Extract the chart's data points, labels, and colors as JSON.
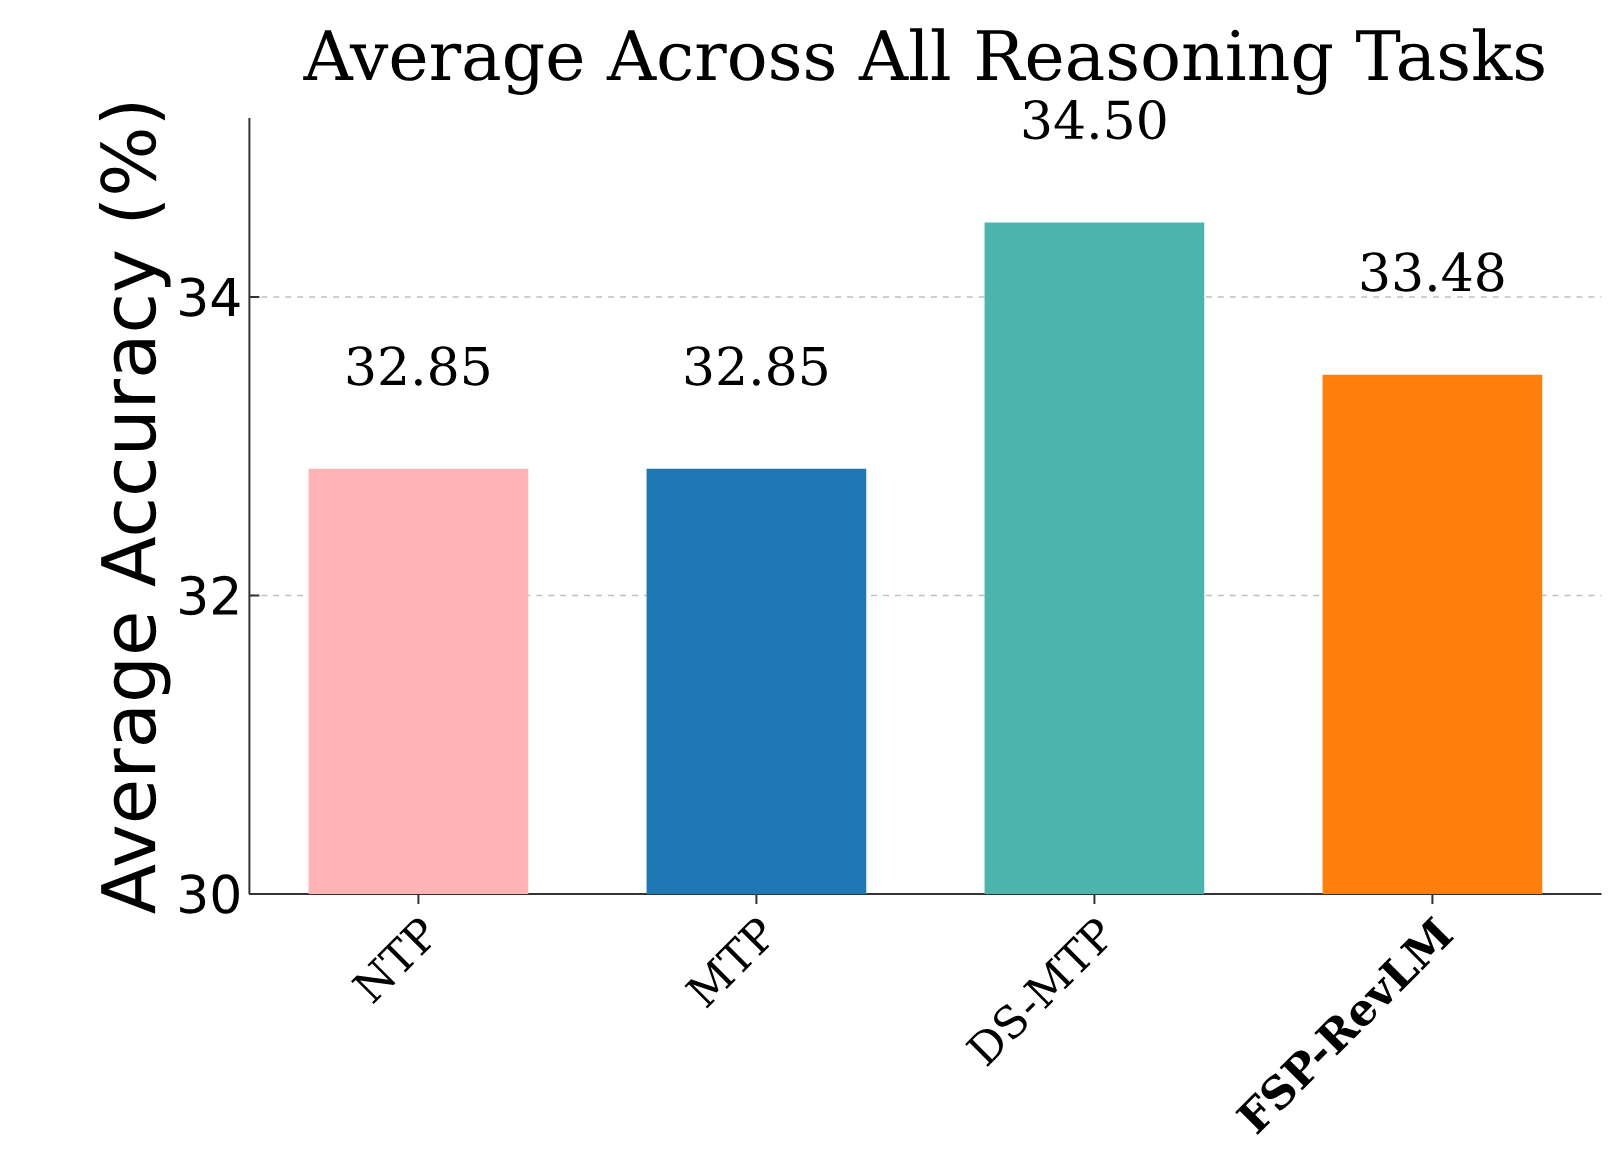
{
  "chart_data": {
    "type": "bar",
    "title": "Average Across All Reasoning Tasks",
    "ylabel": "Average Accuracy (%)",
    "categories": [
      "NTP",
      "MTP",
      "DS-MTP",
      "**FSP-RevLM**"
    ],
    "values": [
      32.85,
      32.85,
      34.5,
      33.48
    ],
    "colors": [
      "#ffb3b3",
      "#1f77b4",
      "#4db3ad",
      "#ff7f0e"
    ],
    "value_labels": [
      "32.85",
      "32.85",
      "34.50",
      "33.48"
    ],
    "ylim": [
      30,
      35.2
    ],
    "yticks": [
      30,
      32,
      34
    ],
    "grid": "y"
  }
}
